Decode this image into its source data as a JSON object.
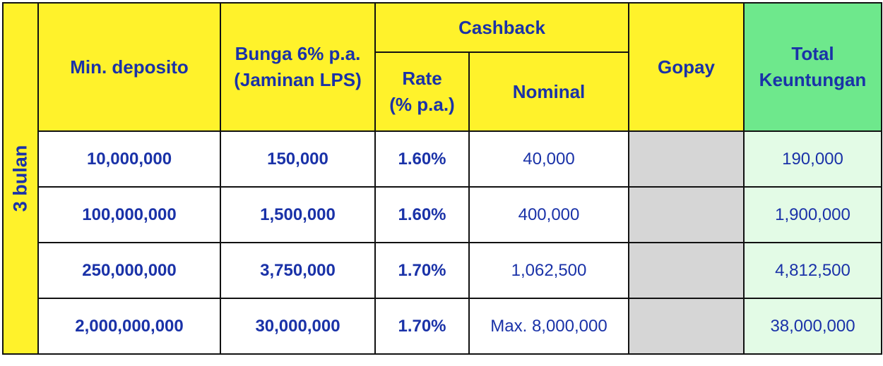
{
  "table": {
    "side_label": "3 bulan",
    "headers": {
      "min_deposito": "Min. deposito",
      "bunga_line1": "Bunga 6% p.a.",
      "bunga_line2": "(Jaminan LPS)",
      "cashback": "Cashback",
      "rate_line1": "Rate",
      "rate_line2": "(% p.a.)",
      "nominal": "Nominal",
      "gopay": "Gopay",
      "total_line1": "Total",
      "total_line2": "Keuntungan"
    },
    "rows": [
      {
        "min_deposito": "10,000,000",
        "bunga": "150,000",
        "rate": "1.60%",
        "nominal": "40,000",
        "gopay": "",
        "total": "190,000"
      },
      {
        "min_deposito": "100,000,000",
        "bunga": "1,500,000",
        "rate": "1.60%",
        "nominal": "400,000",
        "gopay": "",
        "total": "1,900,000"
      },
      {
        "min_deposito": "250,000,000",
        "bunga": "3,750,000",
        "rate": "1.70%",
        "nominal": "1,062,500",
        "gopay": "",
        "total": "4,812,500"
      },
      {
        "min_deposito": "2,000,000,000",
        "bunga": "30,000,000",
        "rate": "1.70%",
        "nominal": "Max. 8,000,000",
        "gopay": "",
        "total": "38,000,000"
      }
    ]
  },
  "colors": {
    "header_yellow": "#fff22b",
    "header_green": "#6ee88c",
    "total_cell": "#e3fbe6",
    "gopay_cell": "#d6d6d6",
    "text_blue": "#1a32a8",
    "border": "#111111"
  }
}
